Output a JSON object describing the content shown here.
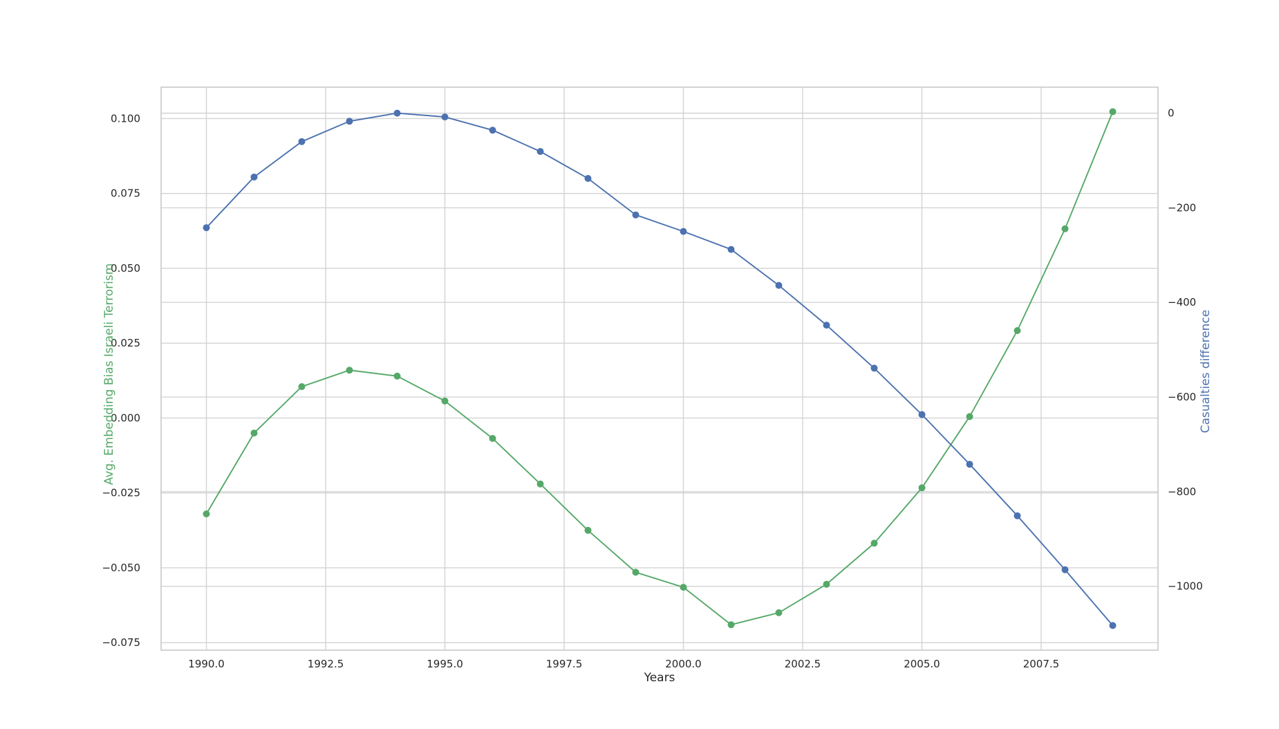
{
  "chart_data": {
    "type": "line",
    "xlabel": "Years",
    "y_left_label": "Avg. Embedding Bias Israeli Terrorism",
    "y_right_label": "Casualties difference",
    "xlim": [
      1989.05,
      2009.95
    ],
    "ylim_left": [
      -0.0775,
      0.1105
    ],
    "ylim_right": [
      -1135,
      55
    ],
    "x_ticks": [
      1990.0,
      1992.5,
      1995.0,
      1997.5,
      2000.0,
      2002.5,
      2005.0,
      2007.5
    ],
    "x_tick_labels": [
      "1990.0",
      "1992.5",
      "1995.0",
      "1997.5",
      "2000.0",
      "2002.5",
      "2005.0",
      "2007.5"
    ],
    "y_left_ticks": [
      0.1,
      0.075,
      0.05,
      0.025,
      0.0,
      -0.025,
      -0.05,
      -0.075
    ],
    "y_left_tick_labels": [
      "0.100",
      "0.075",
      "0.050",
      "0.025",
      "0.000",
      "−0.025",
      "−0.050",
      "−0.075"
    ],
    "y_right_ticks": [
      0,
      -200,
      -400,
      -600,
      -800,
      -1000
    ],
    "y_right_tick_labels": [
      "0",
      "−200",
      "−400",
      "−600",
      "−800",
      "−1000"
    ],
    "grid": true,
    "x": [
      1990,
      1991,
      1992,
      1993,
      1994,
      1995,
      1996,
      1997,
      1998,
      1999,
      2000,
      2001,
      2002,
      2003,
      2004,
      2005,
      2006,
      2007,
      2008,
      2009
    ],
    "series": [
      {
        "axis": "left",
        "color": "#55a868",
        "values": [
          -0.032,
          -0.005,
          0.0105,
          0.016,
          0.014,
          0.0057,
          -0.0068,
          -0.022,
          -0.0375,
          -0.0515,
          -0.0565,
          -0.069,
          -0.065,
          -0.0555,
          -0.0418,
          -0.0233,
          0.0005,
          0.0292,
          0.0632,
          0.1023
        ]
      },
      {
        "axis": "right",
        "color": "#4c72b0",
        "values": [
          -242,
          -135,
          -60,
          -17,
          0,
          -8,
          -36,
          -81,
          -138,
          -215,
          -250,
          -288,
          -364,
          -448,
          -539,
          -637,
          -742,
          -851,
          -965,
          -1083
        ]
      }
    ]
  }
}
